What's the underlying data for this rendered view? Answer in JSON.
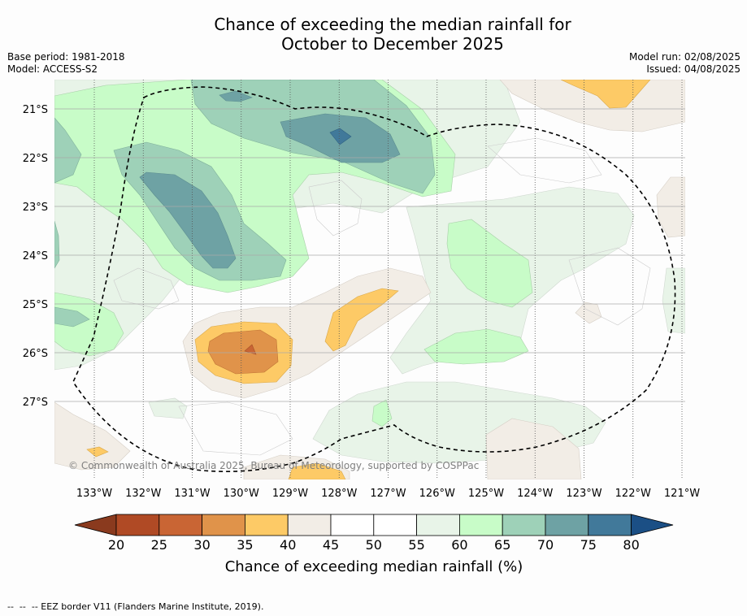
{
  "title_line1": "Chance of exceeding the median rainfall for",
  "title_line2": "October to December 2025",
  "base_period": "Base period: 1981-2018",
  "model": "Model: ACCESS-S2",
  "model_run": "Model run: 02/08/2025",
  "issued": "Issued: 04/08/2025",
  "copyright": "© Commonwealth of Australia 2025, Bureau of Meteorology, supported by COSPPac",
  "footer": "--  --  -- EEZ border V11 (Flanders Marine Institute, 2019).",
  "map": {
    "lon_labels": [
      "133°W",
      "132°W",
      "131°W",
      "130°W",
      "129°W",
      "128°W",
      "127°W",
      "126°W",
      "125°W",
      "124°W",
      "123°W",
      "122°W",
      "121°W"
    ],
    "lat_labels": [
      "21°S",
      "22°S",
      "23°S",
      "24°S",
      "25°S",
      "26°S",
      "27°S"
    ]
  },
  "colorbar": {
    "label": "Chance of exceeding median rainfall (%)",
    "ticks": [
      "20",
      "25",
      "30",
      "35",
      "40",
      "45",
      "50",
      "55",
      "60",
      "65",
      "70",
      "75",
      "80"
    ],
    "colors": [
      "#b04a25",
      "#c96534",
      "#e0934a",
      "#fdca66",
      "#f2ede6",
      "#ffffff",
      "#ffffff",
      "#e8f4e8",
      "#c8fcc8",
      "#9ed1b8",
      "#6ea2a4",
      "#41799a"
    ],
    "under_color": "#8a3a1e",
    "over_color": "#1b4f85"
  }
}
